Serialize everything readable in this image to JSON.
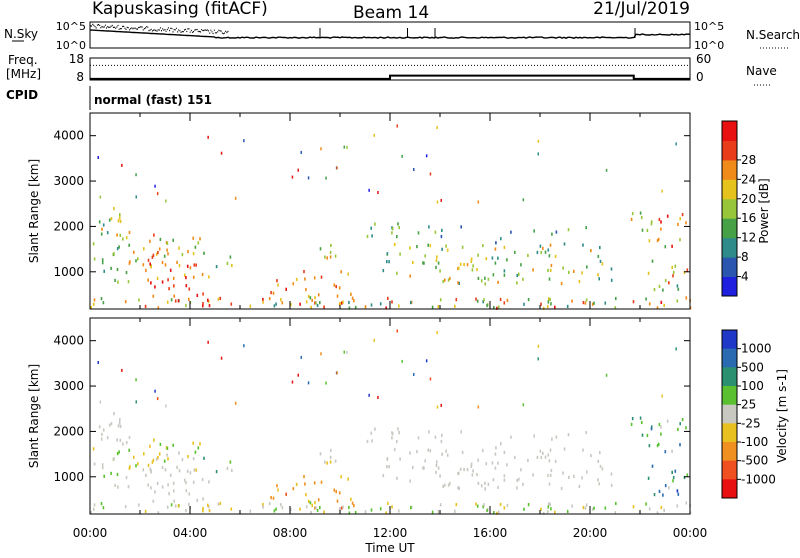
{
  "header": {
    "radar": "Kapuskasing (fitACF)",
    "beam": "Beam 14",
    "date": "21/Jul/2019"
  },
  "side_labels": {
    "nsky": "N.Sky",
    "nsearch": "N.Search",
    "freq_line1": "Freq.",
    "freq_line2": "[MHz]",
    "nave": "Nave",
    "cpid": "CPID"
  },
  "cpid_text": "normal (fast) 151",
  "chart_data": [
    {
      "type": "line",
      "name": "noise",
      "y_left_ticks": [
        "10^5",
        "10^0"
      ],
      "y_right_ticks": [
        "10^5",
        "10^0"
      ],
      "series": [
        {
          "name": "N.Sky",
          "style": "solid"
        },
        {
          "name": "N.Search",
          "style": "dotted"
        }
      ]
    },
    {
      "type": "line",
      "name": "freq_nave",
      "y_left_ticks": [
        "18",
        "8"
      ],
      "y_right_ticks": [
        "60",
        "0"
      ],
      "series": [
        {
          "name": "Freq.",
          "style": "solid",
          "x": [
            "00:00",
            "12:00",
            "21:45",
            "24:00"
          ],
          "y": [
            8.5,
            10,
            8.5,
            8.5
          ]
        },
        {
          "name": "Nave",
          "style": "dotted",
          "x": [
            "00:00",
            "24:00"
          ],
          "y": [
            40,
            40
          ]
        }
      ]
    },
    {
      "type": "heatmap",
      "name": "power",
      "ylabel": "Slant Range [km]",
      "yticks": [
        1000,
        2000,
        3000,
        4000
      ],
      "ylim": [
        180,
        4500
      ],
      "xlim": [
        "00:00",
        "24:00"
      ],
      "colorbar": {
        "label": "Power [dB]",
        "ticks": [
          "4",
          "8",
          "12",
          "16",
          "20",
          "24",
          "28"
        ],
        "colors": [
          "#1f1fe0",
          "#2a56b0",
          "#2f8a8a",
          "#46a046",
          "#98c63a",
          "#e6c21c",
          "#f08a18",
          "#e83c1a",
          "#e81010"
        ]
      }
    },
    {
      "type": "heatmap",
      "name": "velocity",
      "ylabel": "Slant Range [km]",
      "yticks": [
        1000,
        2000,
        3000,
        4000
      ],
      "ylim": [
        180,
        4500
      ],
      "xlim": [
        "00:00",
        "24:00"
      ],
      "xticks": [
        "00:00",
        "04:00",
        "08:00",
        "12:00",
        "16:00",
        "20:00",
        "00:00"
      ],
      "xlabel": "Time UT",
      "colorbar": {
        "label": "Velocity [m s-1]",
        "ticks": [
          "1000",
          "500",
          "100",
          "25",
          "-25",
          "-100",
          "-500",
          "-1000"
        ],
        "colors": [
          "#2038c8",
          "#2a6ab0",
          "#2a9070",
          "#5ac030",
          "#c8c8c0",
          "#e8c020",
          "#f09020",
          "#f05020",
          "#e81010"
        ]
      }
    }
  ]
}
